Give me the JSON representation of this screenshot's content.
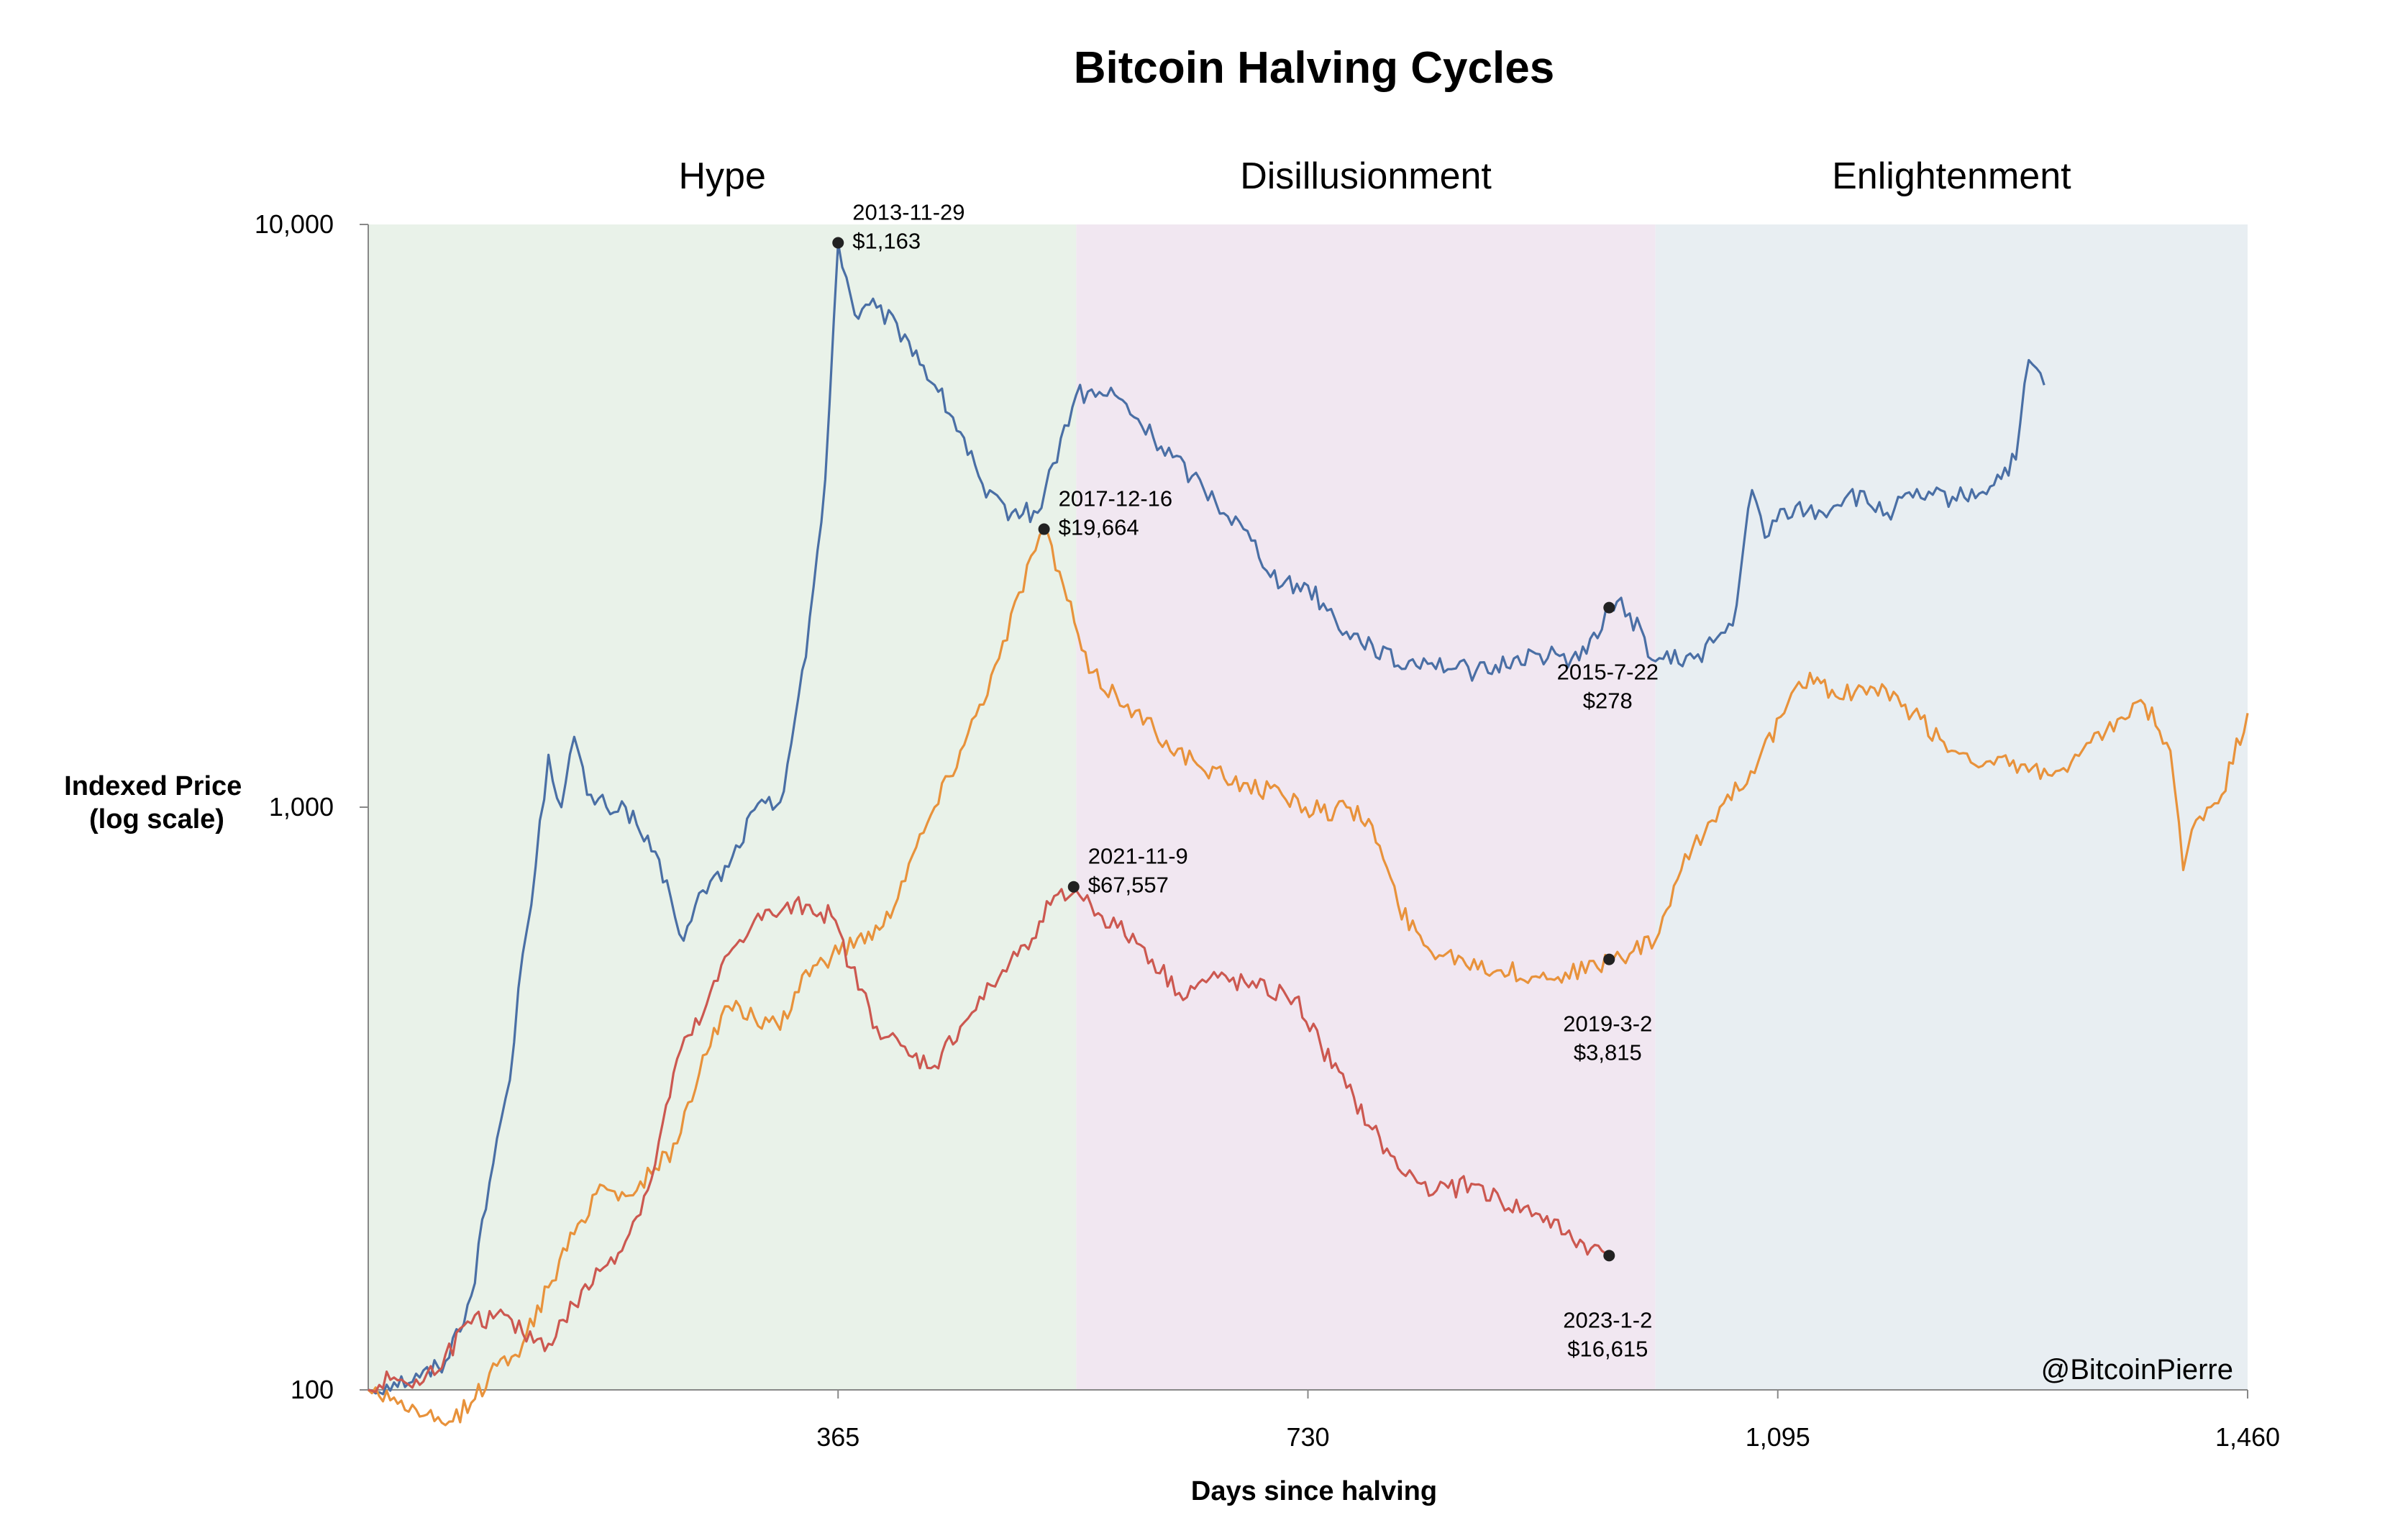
{
  "chart_data": {
    "type": "line",
    "title": "Bitcoin Halving Cycles",
    "xlabel": "Days since halving",
    "ylabel": [
      "Indexed Price",
      "(log scale)"
    ],
    "ylim": [
      100,
      10000
    ],
    "xlim": [
      0,
      1460
    ],
    "y_scale": "log",
    "grid": false,
    "legend": "none",
    "x_ticks": [
      {
        "value": 365,
        "label": "365"
      },
      {
        "value": 730,
        "label": "730"
      },
      {
        "value": 1095,
        "label": "1,095"
      },
      {
        "value": 1460,
        "label": "1,460"
      }
    ],
    "y_ticks": [
      {
        "value": 100,
        "label": "100"
      },
      {
        "value": 1000,
        "label": "1,000"
      },
      {
        "value": 10000,
        "label": "10,000"
      }
    ],
    "phases": [
      {
        "label": "Hype",
        "x_start": 0,
        "x_end": 550,
        "color": "#e9f2e9"
      },
      {
        "label": "Disillusionment",
        "x_start": 550,
        "x_end": 1000,
        "color": "#f1e7f1"
      },
      {
        "label": "Enlightenment",
        "x_start": 1000,
        "x_end": 1460,
        "color": "#e8eef2"
      }
    ],
    "series": [
      {
        "color": "#4a6fa5",
        "points": [
          [
            0,
            100
          ],
          [
            20,
            103
          ],
          [
            40,
            105
          ],
          [
            60,
            112
          ],
          [
            80,
            145
          ],
          [
            100,
            270
          ],
          [
            110,
            340
          ],
          [
            120,
            560
          ],
          [
            130,
            790
          ],
          [
            140,
            1230
          ],
          [
            150,
            1000
          ],
          [
            160,
            1320
          ],
          [
            170,
            1050
          ],
          [
            185,
            1000
          ],
          [
            200,
            1000
          ],
          [
            220,
            840
          ],
          [
            235,
            700
          ],
          [
            245,
            590
          ],
          [
            260,
            720
          ],
          [
            280,
            790
          ],
          [
            300,
            990
          ],
          [
            320,
            1020
          ],
          [
            340,
            1810
          ],
          [
            355,
            3650
          ],
          [
            365,
            9300
          ],
          [
            378,
            7000
          ],
          [
            395,
            7200
          ],
          [
            420,
            6300
          ],
          [
            440,
            5300
          ],
          [
            460,
            4400
          ],
          [
            480,
            3400
          ],
          [
            500,
            3200
          ],
          [
            520,
            3200
          ],
          [
            550,
            5100
          ],
          [
            580,
            5100
          ],
          [
            610,
            4300
          ],
          [
            640,
            3700
          ],
          [
            680,
            3000
          ],
          [
            710,
            2400
          ],
          [
            730,
            2400
          ],
          [
            760,
            2000
          ],
          [
            780,
            1900
          ],
          [
            800,
            1750
          ],
          [
            820,
            1800
          ],
          [
            845,
            1730
          ],
          [
            870,
            1700
          ],
          [
            890,
            1800
          ],
          [
            910,
            1830
          ],
          [
            935,
            1800
          ],
          [
            955,
            1950
          ],
          [
            965,
            2200
          ],
          [
            970,
            2250
          ],
          [
            980,
            2150
          ],
          [
            1000,
            1780
          ],
          [
            1030,
            1800
          ],
          [
            1060,
            2050
          ],
          [
            1075,
            3500
          ],
          [
            1085,
            2900
          ],
          [
            1100,
            3250
          ],
          [
            1130,
            3200
          ],
          [
            1150,
            3450
          ],
          [
            1180,
            3200
          ],
          [
            1200,
            3400
          ],
          [
            1240,
            3400
          ],
          [
            1260,
            3550
          ],
          [
            1280,
            3950
          ],
          [
            1290,
            5850
          ],
          [
            1302,
            5300
          ]
        ]
      },
      {
        "color": "#e8923b",
        "points": [
          [
            0,
            100
          ],
          [
            20,
            97
          ],
          [
            40,
            90
          ],
          [
            60,
            87
          ],
          [
            80,
            95
          ],
          [
            100,
            110
          ],
          [
            120,
            120
          ],
          [
            140,
            150
          ],
          [
            160,
            185
          ],
          [
            180,
            225
          ],
          [
            200,
            215
          ],
          [
            220,
            235
          ],
          [
            240,
            265
          ],
          [
            260,
            375
          ],
          [
            280,
            455
          ],
          [
            300,
            435
          ],
          [
            320,
            415
          ],
          [
            340,
            525
          ],
          [
            360,
            555
          ],
          [
            380,
            595
          ],
          [
            400,
            625
          ],
          [
            420,
            800
          ],
          [
            440,
            1000
          ],
          [
            460,
            1250
          ],
          [
            490,
            1800
          ],
          [
            515,
            2700
          ],
          [
            525,
            3000
          ],
          [
            540,
            2400
          ],
          [
            560,
            1700
          ],
          [
            590,
            1500
          ],
          [
            620,
            1300
          ],
          [
            650,
            1150
          ],
          [
            680,
            1100
          ],
          [
            710,
            1050
          ],
          [
            740,
            980
          ],
          [
            760,
            1000
          ],
          [
            780,
            930
          ],
          [
            800,
            680
          ],
          [
            820,
            580
          ],
          [
            850,
            550
          ],
          [
            880,
            525
          ],
          [
            910,
            510
          ],
          [
            930,
            520
          ],
          [
            955,
            530
          ],
          [
            964,
            548
          ],
          [
            980,
            560
          ],
          [
            1000,
            590
          ],
          [
            1020,
            780
          ],
          [
            1050,
            1000
          ],
          [
            1080,
            1200
          ],
          [
            1100,
            1450
          ],
          [
            1120,
            1700
          ],
          [
            1140,
            1550
          ],
          [
            1170,
            1600
          ],
          [
            1200,
            1450
          ],
          [
            1230,
            1250
          ],
          [
            1260,
            1200
          ],
          [
            1290,
            1150
          ],
          [
            1320,
            1150
          ],
          [
            1350,
            1350
          ],
          [
            1380,
            1500
          ],
          [
            1400,
            1250
          ],
          [
            1410,
            780
          ],
          [
            1420,
            950
          ],
          [
            1440,
            1050
          ],
          [
            1460,
            1450
          ]
        ]
      },
      {
        "color": "#cc5850",
        "points": [
          [
            0,
            100
          ],
          [
            20,
            105
          ],
          [
            40,
            102
          ],
          [
            60,
            115
          ],
          [
            80,
            130
          ],
          [
            100,
            135
          ],
          [
            120,
            125
          ],
          [
            140,
            120
          ],
          [
            160,
            140
          ],
          [
            180,
            160
          ],
          [
            200,
            180
          ],
          [
            220,
            230
          ],
          [
            240,
            370
          ],
          [
            260,
            440
          ],
          [
            280,
            560
          ],
          [
            300,
            640
          ],
          [
            320,
            660
          ],
          [
            340,
            680
          ],
          [
            360,
            650
          ],
          [
            375,
            530
          ],
          [
            395,
            420
          ],
          [
            420,
            375
          ],
          [
            440,
            360
          ],
          [
            460,
            420
          ],
          [
            490,
            510
          ],
          [
            510,
            580
          ],
          [
            530,
            680
          ],
          [
            550,
            720
          ],
          [
            570,
            650
          ],
          [
            600,
            580
          ],
          [
            630,
            480
          ],
          [
            660,
            510
          ],
          [
            690,
            490
          ],
          [
            720,
            470
          ],
          [
            740,
            390
          ],
          [
            760,
            330
          ],
          [
            780,
            280
          ],
          [
            800,
            240
          ],
          [
            830,
            220
          ],
          [
            860,
            225
          ],
          [
            880,
            210
          ],
          [
            910,
            200
          ],
          [
            930,
            185
          ],
          [
            950,
            175
          ],
          [
            964,
            170
          ]
        ]
      }
    ],
    "annotations": [
      {
        "series": 0,
        "x": 365,
        "y": 9300,
        "lines": [
          "2013-11-29",
          "$1,163"
        ],
        "position": "above-right"
      },
      {
        "series": 1,
        "x": 525,
        "y": 3000,
        "lines": [
          "2017-12-16",
          "$19,664"
        ],
        "position": "above-right"
      },
      {
        "series": 2,
        "x": 548,
        "y": 730,
        "lines": [
          "2021-11-9",
          "$67,557"
        ],
        "position": "above-right"
      },
      {
        "series": 0,
        "x": 964,
        "y": 2200,
        "lines": [
          "2015-7-22",
          "$278"
        ],
        "position": "below"
      },
      {
        "series": 1,
        "x": 964,
        "y": 548,
        "lines": [
          "2019-3-2",
          "$3,815"
        ],
        "position": "below"
      },
      {
        "series": 2,
        "x": 964,
        "y": 170,
        "lines": [
          "2023-1-2",
          "$16,615"
        ],
        "position": "below"
      }
    ],
    "credit": "@BitcoinPierre"
  }
}
